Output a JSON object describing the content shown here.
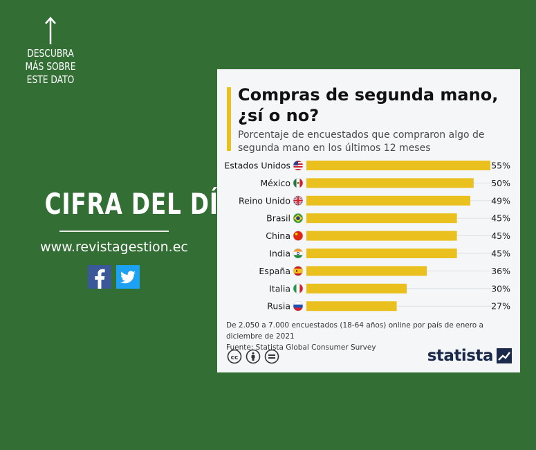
{
  "promo": {
    "cta_text": "DESCUBRA MÁS SOBRE ESTE DATO",
    "brand_title": "CIFRA DEL DÍA",
    "website": "www.revistagestion.ec",
    "social": [
      "facebook-icon",
      "twitter-icon"
    ]
  },
  "colors": {
    "background": "#336f34",
    "card": "#f4f6f8",
    "bar": "#e9c01e",
    "title_accent": "#e9c01e",
    "statista_navy": "#1b2a4a"
  },
  "footnote": {
    "line1": "De 2.050 a 7.000 encuestados (18-64 años) online por país de enero a diciembre de 2021",
    "line2": "Fuente: Statista Global Consumer Survey"
  },
  "brand_logo": "statista",
  "license_icons": [
    "cc-icon",
    "by-icon",
    "nd-icon"
  ],
  "chart_data": {
    "type": "bar",
    "orientation": "horizontal",
    "title": "Compras de segunda mano, ¿sí o no?",
    "subtitle": "Porcentaje de encuestados que compraron algo de segunda mano en los últimos 12 meses",
    "categories": [
      "Estados Unidos",
      "México",
      "Reino Unido",
      "Brasil",
      "China",
      "India",
      "España",
      "Italia",
      "Rusia"
    ],
    "values": [
      55,
      50,
      49,
      45,
      45,
      45,
      36,
      30,
      27
    ],
    "value_labels": [
      "55%",
      "50%",
      "49%",
      "45%",
      "45%",
      "45%",
      "36%",
      "30%",
      "27%"
    ],
    "flags": [
      "flag-us-icon",
      "flag-mx-icon",
      "flag-uk-icon",
      "flag-br-icon",
      "flag-cn-icon",
      "flag-in-icon",
      "flag-es-icon",
      "flag-it-icon",
      "flag-ru-icon"
    ],
    "xlim": [
      0,
      55
    ],
    "grid": false,
    "legend": "none"
  }
}
